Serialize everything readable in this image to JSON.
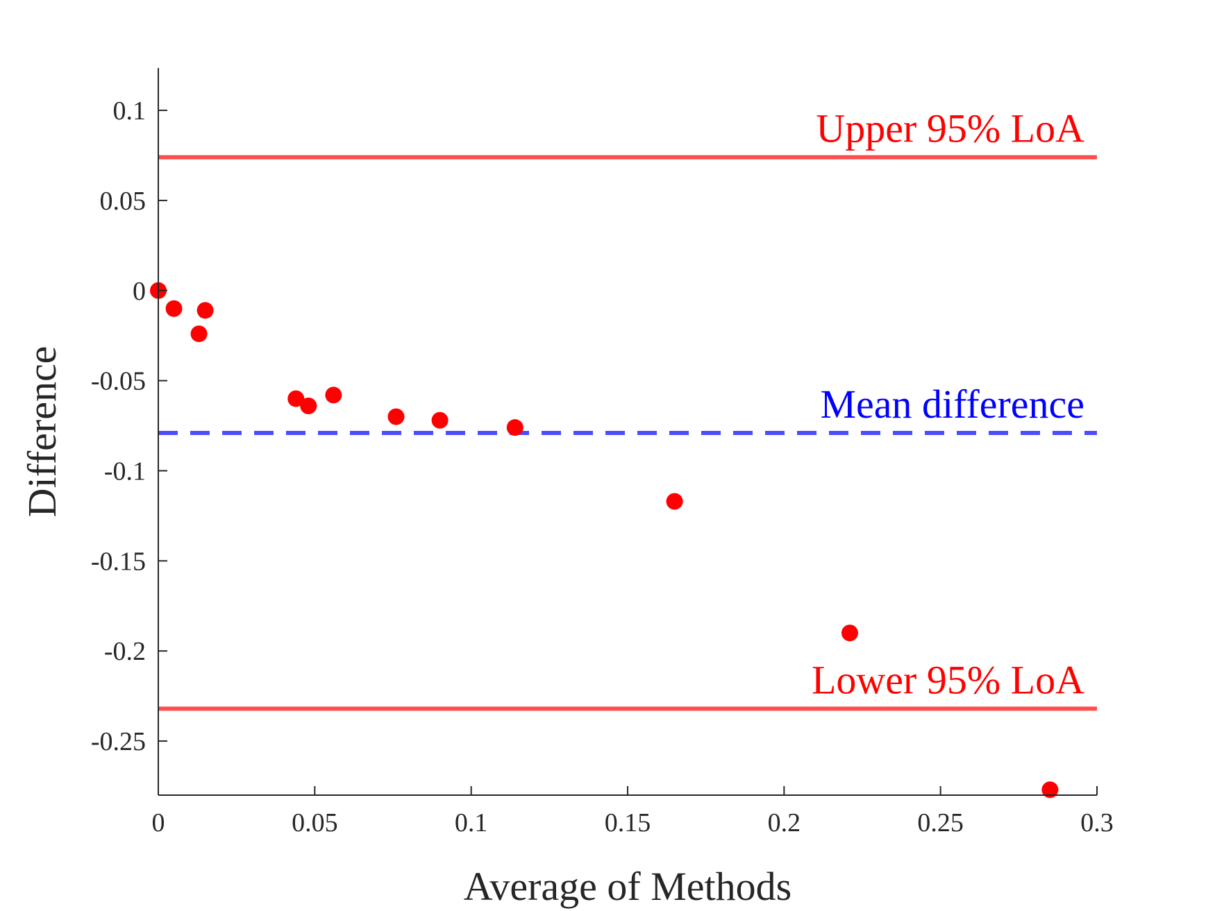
{
  "chart_data": {
    "type": "scatter",
    "title": "",
    "xlabel": "Average of Methods",
    "ylabel": "Difference",
    "xlim": [
      0,
      0.3
    ],
    "ylim": [
      -0.28,
      0.1235
    ],
    "grid": false,
    "xticks": [
      0,
      0.05,
      0.1,
      0.15,
      0.2,
      0.25,
      0.3
    ],
    "xtick_labels": [
      "0",
      "0.05",
      "0.1",
      "0.15",
      "0.2",
      "0.25",
      "0.3"
    ],
    "yticks": [
      0.1,
      0.05,
      0,
      -0.05,
      -0.1,
      -0.15,
      -0.2,
      -0.25
    ],
    "ytick_labels": [
      "0.1",
      "0.05",
      "0",
      "-0.05",
      "-0.1",
      "-0.15",
      "-0.2",
      "-0.25"
    ],
    "series": [
      {
        "color": "#ff0000",
        "marker": "filled-circle",
        "points": [
          {
            "x": 0.0,
            "y": 0.0
          },
          {
            "x": 0.005,
            "y": -0.01
          },
          {
            "x": 0.013,
            "y": -0.024
          },
          {
            "x": 0.015,
            "y": -0.011
          },
          {
            "x": 0.044,
            "y": -0.06
          },
          {
            "x": 0.048,
            "y": -0.064
          },
          {
            "x": 0.056,
            "y": -0.058
          },
          {
            "x": 0.076,
            "y": -0.07
          },
          {
            "x": 0.09,
            "y": -0.072
          },
          {
            "x": 0.114,
            "y": -0.076
          },
          {
            "x": 0.165,
            "y": -0.117
          },
          {
            "x": 0.221,
            "y": -0.19
          },
          {
            "x": 0.285,
            "y": -0.277
          }
        ]
      }
    ],
    "reference_lines": [
      {
        "label": "Upper 95% LoA",
        "y": 0.074,
        "color": "#ff4d4d",
        "label_color": "#ff0000",
        "style": "solid"
      },
      {
        "label": "Mean difference",
        "y": -0.079,
        "color": "#4d4dff",
        "label_color": "#0000ff",
        "style": "dashed"
      },
      {
        "label": "Lower 95% LoA",
        "y": -0.232,
        "color": "#ff4d4d",
        "label_color": "#ff0000",
        "style": "solid"
      }
    ]
  }
}
